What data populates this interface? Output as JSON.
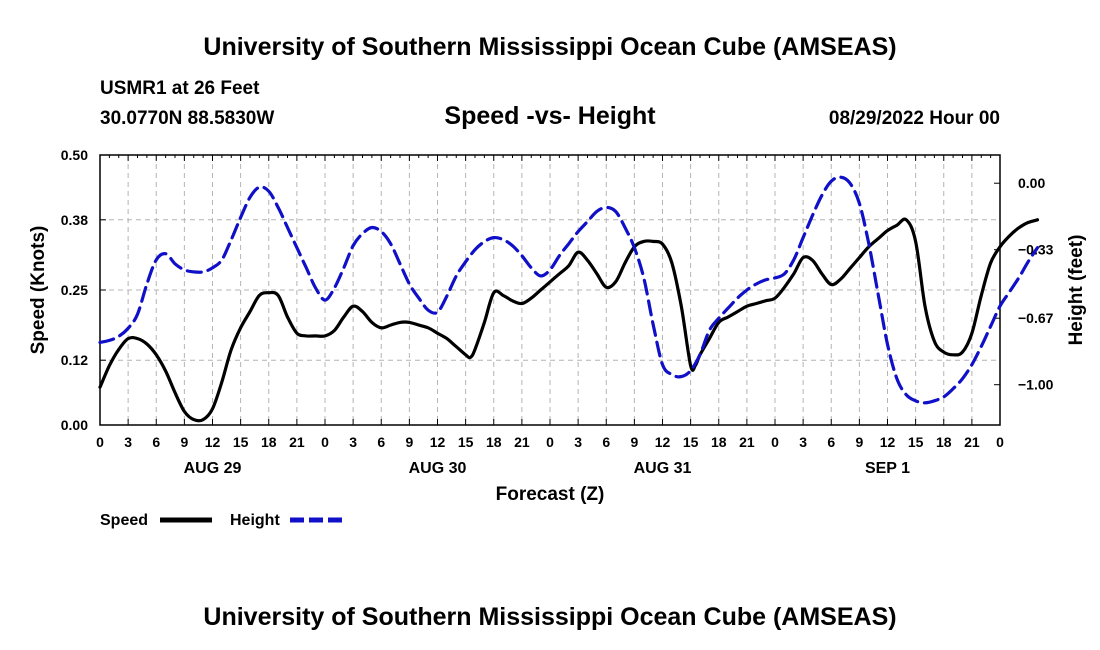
{
  "page": {
    "title": "University of Southern Mississippi Ocean Cube (AMSEAS)",
    "footer_title": "University of Southern Mississippi Ocean Cube (AMSEAS)"
  },
  "header": {
    "station": "USMR1 at 26 Feet",
    "coords": "30.0770N  88.5830W",
    "chart_title": "Speed -vs- Height",
    "run_time": "08/29/2022 Hour 00"
  },
  "chart_data": {
    "type": "line",
    "title": "Speed -vs- Height",
    "xlabel": "Forecast (Z)",
    "ylabel_left": "Speed (Knots)",
    "ylabel_right": "Height (feet)",
    "x_hours": [
      0,
      3,
      6,
      9,
      12,
      15,
      18,
      21,
      24,
      27,
      30,
      33,
      36,
      39,
      42,
      45,
      48,
      51,
      54,
      57,
      60,
      63,
      66,
      69,
      72,
      75,
      78,
      81,
      84,
      87,
      90,
      93,
      96
    ],
    "x_tick_labels": [
      "0",
      "3",
      "6",
      "9",
      "12",
      "15",
      "18",
      "21",
      "0",
      "3",
      "6",
      "9",
      "12",
      "15",
      "18",
      "21",
      "0",
      "3",
      "6",
      "9",
      "12",
      "15",
      "18",
      "21",
      "0",
      "3",
      "6",
      "9",
      "12",
      "15",
      "18",
      "21",
      "0"
    ],
    "date_labels": [
      {
        "label": "AUG 29",
        "hour": 12
      },
      {
        "label": "AUG 30",
        "hour": 36
      },
      {
        "label": "AUG 31",
        "hour": 60
      },
      {
        "label": "SEP 1",
        "hour": 84
      }
    ],
    "y_left_ticks": [
      "0.00",
      "0.12",
      "0.25",
      "0.38",
      "0.50"
    ],
    "y_left_range": [
      0,
      0.5
    ],
    "y_right_ticks": [
      "0.00",
      "-0.33",
      "-0.67",
      "-1.00"
    ],
    "y_right_range": [
      -1.2,
      0.14
    ],
    "legend": "bottom-left",
    "grid": true,
    "series": [
      {
        "name": "Speed",
        "color": "#000000",
        "dash": "solid",
        "axis": "left",
        "points": [
          [
            0,
            0.07
          ],
          [
            1,
            0.11
          ],
          [
            2,
            0.14
          ],
          [
            3,
            0.16
          ],
          [
            4,
            0.16
          ],
          [
            5,
            0.15
          ],
          [
            6,
            0.13
          ],
          [
            7,
            0.1
          ],
          [
            8,
            0.06
          ],
          [
            9,
            0.025
          ],
          [
            10,
            0.01
          ],
          [
            11,
            0.01
          ],
          [
            12,
            0.03
          ],
          [
            13,
            0.08
          ],
          [
            14,
            0.14
          ],
          [
            15,
            0.18
          ],
          [
            16,
            0.21
          ],
          [
            17,
            0.24
          ],
          [
            18,
            0.245
          ],
          [
            19,
            0.24
          ],
          [
            20,
            0.2
          ],
          [
            21,
            0.17
          ],
          [
            22,
            0.165
          ],
          [
            23,
            0.165
          ],
          [
            24,
            0.165
          ],
          [
            25,
            0.175
          ],
          [
            26,
            0.2
          ],
          [
            27,
            0.22
          ],
          [
            28,
            0.21
          ],
          [
            29,
            0.19
          ],
          [
            30,
            0.18
          ],
          [
            31,
            0.185
          ],
          [
            32,
            0.19
          ],
          [
            33,
            0.19
          ],
          [
            34,
            0.185
          ],
          [
            35,
            0.18
          ],
          [
            36,
            0.17
          ],
          [
            37,
            0.16
          ],
          [
            38,
            0.145
          ],
          [
            39,
            0.13
          ],
          [
            39.5,
            0.125
          ],
          [
            40,
            0.14
          ],
          [
            41,
            0.19
          ],
          [
            42,
            0.245
          ],
          [
            43,
            0.24
          ],
          [
            44,
            0.23
          ],
          [
            45,
            0.225
          ],
          [
            46,
            0.235
          ],
          [
            47,
            0.25
          ],
          [
            48,
            0.265
          ],
          [
            49,
            0.28
          ],
          [
            50,
            0.295
          ],
          [
            51,
            0.32
          ],
          [
            52,
            0.305
          ],
          [
            53,
            0.28
          ],
          [
            54,
            0.255
          ],
          [
            55,
            0.265
          ],
          [
            56,
            0.3
          ],
          [
            57,
            0.33
          ],
          [
            58,
            0.34
          ],
          [
            59,
            0.34
          ],
          [
            60,
            0.335
          ],
          [
            61,
            0.3
          ],
          [
            62,
            0.22
          ],
          [
            63,
            0.11
          ],
          [
            63.5,
            0.11
          ],
          [
            64,
            0.13
          ],
          [
            65,
            0.16
          ],
          [
            66,
            0.19
          ],
          [
            67,
            0.2
          ],
          [
            68,
            0.21
          ],
          [
            69,
            0.22
          ],
          [
            70,
            0.225
          ],
          [
            71,
            0.23
          ],
          [
            72,
            0.235
          ],
          [
            73,
            0.255
          ],
          [
            74,
            0.28
          ],
          [
            75,
            0.31
          ],
          [
            76,
            0.305
          ],
          [
            77,
            0.28
          ],
          [
            78,
            0.26
          ],
          [
            79,
            0.27
          ],
          [
            80,
            0.29
          ],
          [
            81,
            0.31
          ],
          [
            82,
            0.33
          ],
          [
            83,
            0.345
          ],
          [
            84,
            0.36
          ],
          [
            85,
            0.37
          ],
          [
            86,
            0.38
          ],
          [
            87,
            0.34
          ],
          [
            88,
            0.22
          ],
          [
            89,
            0.155
          ],
          [
            90,
            0.135
          ],
          [
            91,
            0.13
          ],
          [
            92,
            0.135
          ],
          [
            93,
            0.17
          ],
          [
            94,
            0.24
          ],
          [
            95,
            0.3
          ],
          [
            96,
            0.33
          ],
          [
            97,
            0.35
          ],
          [
            98,
            0.365
          ],
          [
            99,
            0.375
          ],
          [
            100,
            0.38
          ]
        ]
      },
      {
        "name": "Height",
        "color": "#1010c8",
        "dash": "dashed",
        "axis": "right",
        "points": [
          [
            0,
            -0.79
          ],
          [
            1,
            -0.78
          ],
          [
            2,
            -0.76
          ],
          [
            3,
            -0.72
          ],
          [
            4,
            -0.65
          ],
          [
            5,
            -0.5
          ],
          [
            6,
            -0.38
          ],
          [
            7,
            -0.35
          ],
          [
            8,
            -0.4
          ],
          [
            9,
            -0.43
          ],
          [
            10,
            -0.44
          ],
          [
            11,
            -0.44
          ],
          [
            12,
            -0.42
          ],
          [
            13,
            -0.38
          ],
          [
            14,
            -0.28
          ],
          [
            15,
            -0.17
          ],
          [
            16,
            -0.07
          ],
          [
            17,
            -0.02
          ],
          [
            18,
            -0.04
          ],
          [
            19,
            -0.12
          ],
          [
            20,
            -0.22
          ],
          [
            21,
            -0.32
          ],
          [
            22,
            -0.42
          ],
          [
            23,
            -0.52
          ],
          [
            24,
            -0.58
          ],
          [
            25,
            -0.52
          ],
          [
            26,
            -0.42
          ],
          [
            27,
            -0.31
          ],
          [
            28,
            -0.25
          ],
          [
            29,
            -0.22
          ],
          [
            30,
            -0.24
          ],
          [
            31,
            -0.3
          ],
          [
            32,
            -0.4
          ],
          [
            33,
            -0.5
          ],
          [
            34,
            -0.57
          ],
          [
            35,
            -0.63
          ],
          [
            36,
            -0.64
          ],
          [
            37,
            -0.56
          ],
          [
            38,
            -0.46
          ],
          [
            39,
            -0.39
          ],
          [
            40,
            -0.33
          ],
          [
            41,
            -0.29
          ],
          [
            42,
            -0.27
          ],
          [
            43,
            -0.28
          ],
          [
            44,
            -0.31
          ],
          [
            45,
            -0.36
          ],
          [
            46,
            -0.42
          ],
          [
            47,
            -0.46
          ],
          [
            48,
            -0.43
          ],
          [
            49,
            -0.36
          ],
          [
            50,
            -0.3
          ],
          [
            51,
            -0.24
          ],
          [
            52,
            -0.19
          ],
          [
            53,
            -0.14
          ],
          [
            54,
            -0.12
          ],
          [
            55,
            -0.14
          ],
          [
            56,
            -0.22
          ],
          [
            57,
            -0.32
          ],
          [
            58,
            -0.47
          ],
          [
            59,
            -0.7
          ],
          [
            60,
            -0.9
          ],
          [
            61,
            -0.95
          ],
          [
            62,
            -0.96
          ],
          [
            63,
            -0.93
          ],
          [
            64,
            -0.85
          ],
          [
            65,
            -0.73
          ],
          [
            66,
            -0.67
          ],
          [
            67,
            -0.62
          ],
          [
            68,
            -0.57
          ],
          [
            69,
            -0.53
          ],
          [
            70,
            -0.5
          ],
          [
            71,
            -0.48
          ],
          [
            72,
            -0.47
          ],
          [
            73,
            -0.45
          ],
          [
            74,
            -0.38
          ],
          [
            75,
            -0.27
          ],
          [
            76,
            -0.16
          ],
          [
            77,
            -0.06
          ],
          [
            78,
            0.01
          ],
          [
            79,
            0.03
          ],
          [
            80,
            0.0
          ],
          [
            81,
            -0.1
          ],
          [
            82,
            -0.3
          ],
          [
            83,
            -0.55
          ],
          [
            84,
            -0.8
          ],
          [
            85,
            -0.97
          ],
          [
            86,
            -1.05
          ],
          [
            87,
            -1.08
          ],
          [
            88,
            -1.09
          ],
          [
            89,
            -1.08
          ],
          [
            90,
            -1.06
          ],
          [
            91,
            -1.02
          ],
          [
            92,
            -0.97
          ],
          [
            93,
            -0.9
          ],
          [
            94,
            -0.81
          ],
          [
            95,
            -0.71
          ],
          [
            96,
            -0.61
          ],
          [
            97,
            -0.54
          ],
          [
            98,
            -0.47
          ],
          [
            99,
            -0.39
          ],
          [
            100,
            -0.32
          ]
        ]
      }
    ]
  },
  "legend": {
    "speed_label": "Speed",
    "height_label": "Height",
    "speed_color": "#000000",
    "height_color": "#1010c8"
  }
}
